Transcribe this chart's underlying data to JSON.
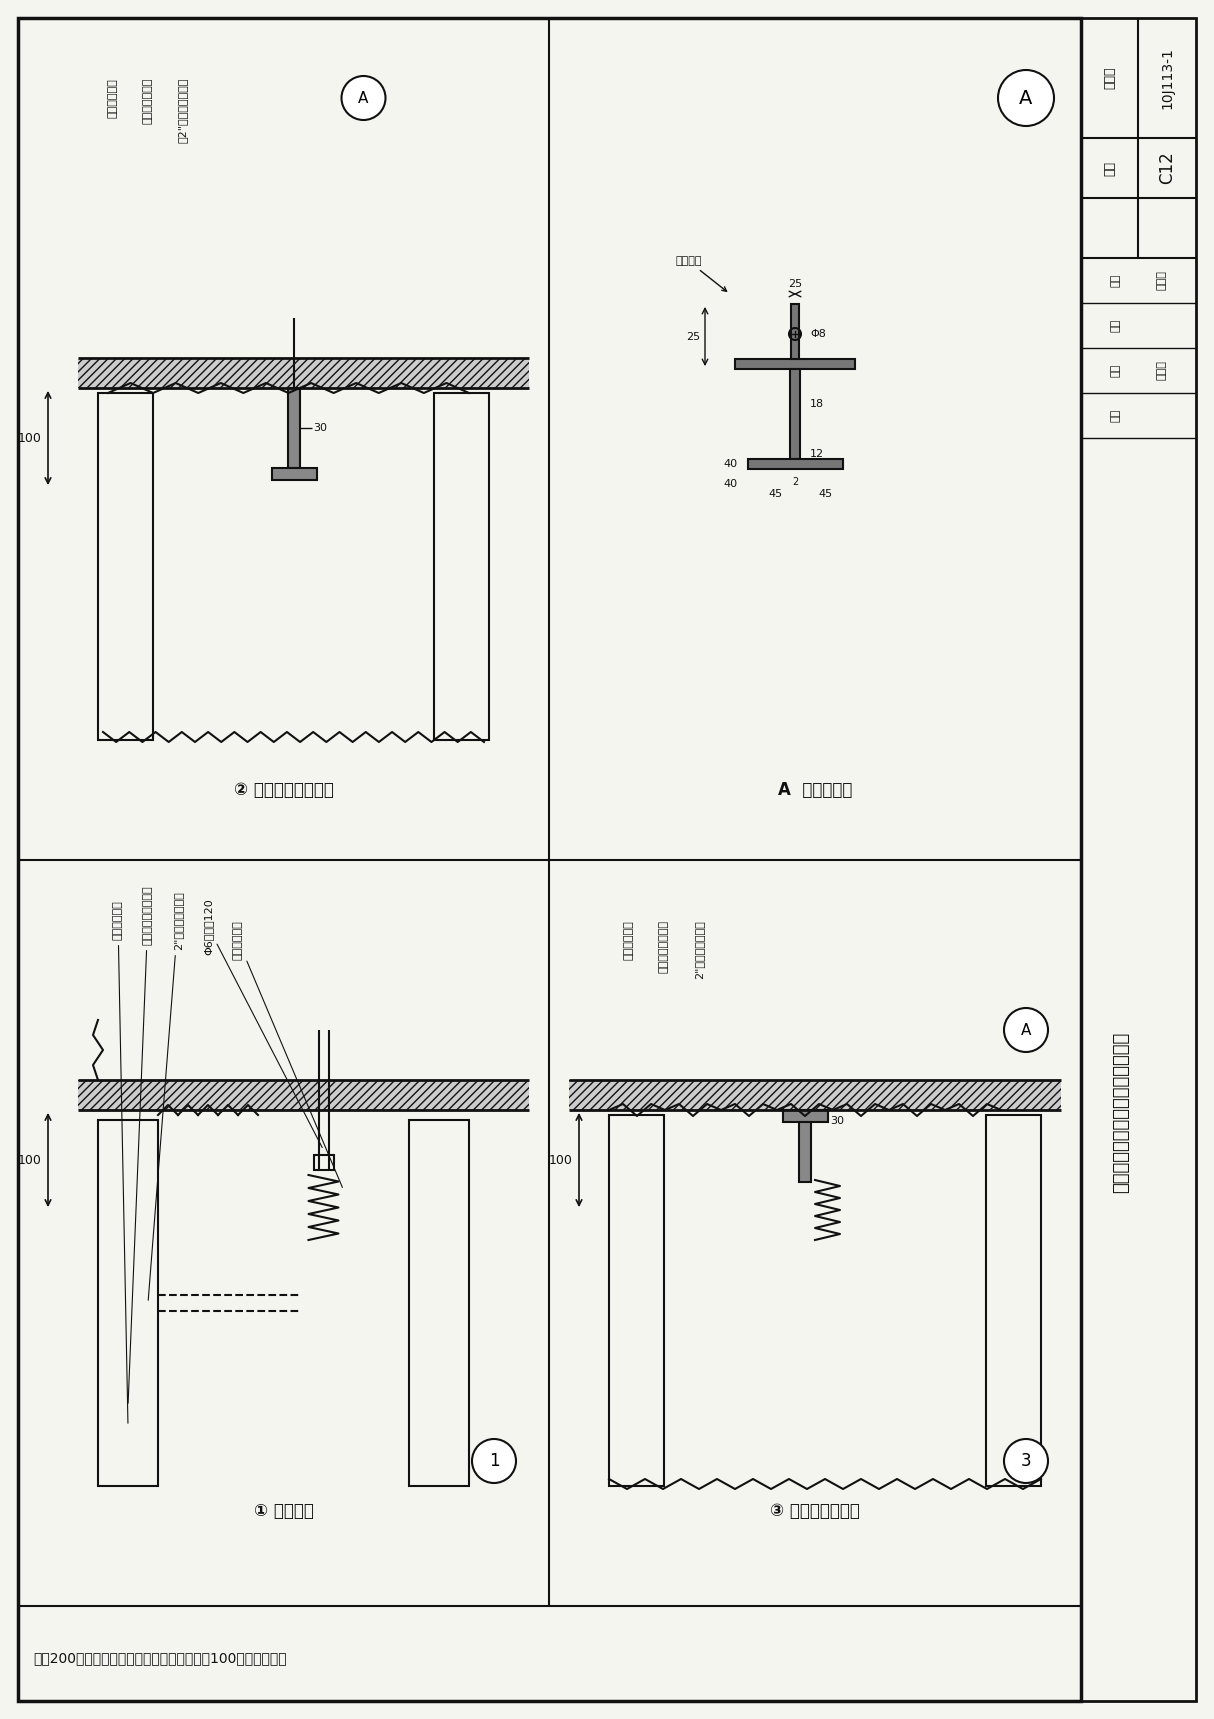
{
  "page_bg": "#f5f5f0",
  "border_color": "#222222",
  "line_color": "#111111",
  "title": "植物纤维条板预埋件、吊挂件节点",
  "drawing_number": "10J113-1",
  "page_number": "C12",
  "note": "注：200厚植物纤维条板上设置吊挂件时参照100厚条板构造。",
  "label1": "①  吊挂埋件",
  "label2": "②  钢板垂直吊挂埋件",
  "label3": "③  钢板水平吊挂件",
  "labelA": "A  钢板吊挂件",
  "annotations1": [
    "植物纤维条板",
    "植物纤维条板开孔用",
    "2\"粘结剂预埋钢件",
    "Φ6螺栓长120",
    "软质材料堵孔"
  ],
  "annotations2": [
    "植物纤维条板",
    "钢板垂直吊挂件",
    "用2\"粘结剂预埋钢件"
  ],
  "annotations3": [
    "植物纤维条板",
    "钢板水平吊挂件用",
    "2\"粘结剂预埋钢件"
  ],
  "dim_100": "100",
  "dim_30": "30",
  "dim_25_top": "25",
  "dim_25": "25",
  "dim_25b": "25",
  "dim_18": "18",
  "dim_12": "12",
  "dim_45": "45",
  "dim_45b": "45",
  "dim_40": "40",
  "dim_8": "Φ8",
  "table_labels": [
    "图集号",
    "页次",
    "审核",
    "设计",
    "校对",
    "制图"
  ],
  "table_vals": [
    "10J113-1",
    "C12",
    "张云东",
    "杨公东",
    "",
    ""
  ],
  "subtitle_v": "植物纤维条板预埋件、吊挂件节点"
}
